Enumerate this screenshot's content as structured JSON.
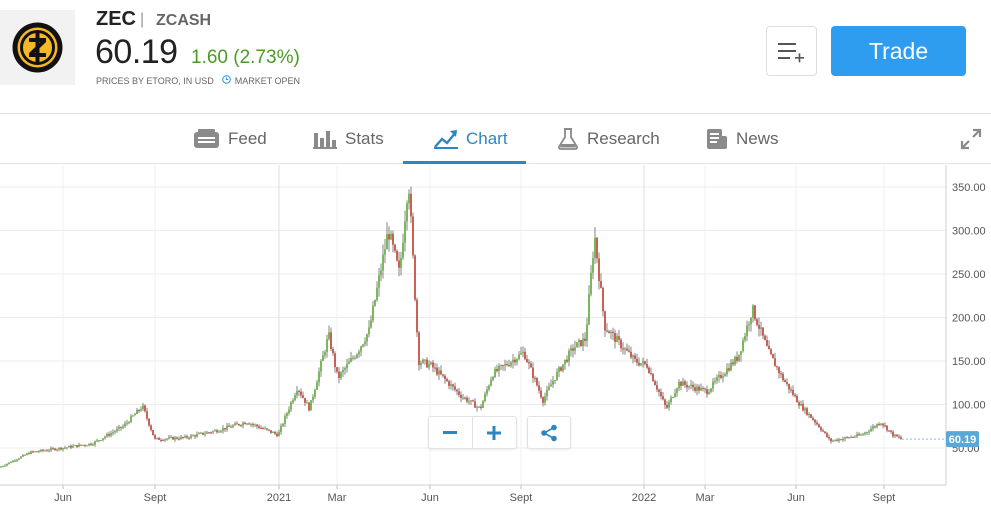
{
  "instrument": {
    "ticker": "ZEC",
    "separator": "|",
    "full_name": "ZCASH",
    "price": "60.19",
    "change": "1.60 (2.73%)",
    "prices_by": "PRICES BY ETORO, IN USD",
    "market_status": "MARKET OPEN"
  },
  "actions": {
    "trade_label": "Trade"
  },
  "tabs": [
    {
      "label": "Feed",
      "icon": "feed-icon"
    },
    {
      "label": "Stats",
      "icon": "stats-icon"
    },
    {
      "label": "Chart",
      "icon": "chart-icon",
      "active": true
    },
    {
      "label": "Research",
      "icon": "research-icon"
    },
    {
      "label": "News",
      "icon": "news-icon"
    }
  ],
  "colors": {
    "accent": "#2e86c1",
    "trade_button": "#2e9df0",
    "positive": "#4a9a26",
    "candle_up": "#5aa832",
    "candle_down": "#c0392b"
  },
  "chart_data": {
    "type": "line",
    "title": "",
    "xlabel": "",
    "ylabel": "",
    "ylim": [
      0,
      370
    ],
    "y_ticks": [
      "50.00",
      "100.00",
      "150.00",
      "200.00",
      "250.00",
      "300.00",
      "350.00"
    ],
    "x_ticks": [
      "Jun",
      "Sept",
      "2021",
      "Mar",
      "Jun",
      "Sept",
      "2022",
      "Mar",
      "Jun",
      "Sept"
    ],
    "last_price_label": "60.19",
    "series": [
      {
        "x": [
          "2020-04",
          "2020-05",
          "2020-06",
          "2020-07",
          "2020-08",
          "2020-08-20",
          "2020-09",
          "2020-10",
          "2020-11",
          "2020-12",
          "2021-01",
          "2021-01-20",
          "2021-02",
          "2021-02-20",
          "2021-03",
          "2021-03-20",
          "2021-04",
          "2021-04-20",
          "2021-05",
          "2021-05-10",
          "2021-05-20",
          "2021-06",
          "2021-07",
          "2021-07-20",
          "2021-08",
          "2021-09",
          "2021-09-20",
          "2021-10",
          "2021-10-20",
          "2021-11",
          "2021-11-10",
          "2021-11-20",
          "2021-12",
          "2021-12-20",
          "2022-01",
          "2022-01-20",
          "2022-02",
          "2022-03",
          "2022-04",
          "2022-04-15",
          "2022-05",
          "2022-05-15",
          "2022-06",
          "2022-06-20",
          "2022-07",
          "2022-08",
          "2022-08-20",
          "2022-09",
          "2022-09-10"
        ],
        "values": [
          28,
          45,
          50,
          55,
          75,
          98,
          60,
          62,
          70,
          80,
          65,
          120,
          95,
          180,
          130,
          160,
          185,
          300,
          250,
          360,
          150,
          145,
          110,
          95,
          135,
          160,
          105,
          130,
          165,
          175,
          295,
          190,
          175,
          150,
          145,
          95,
          125,
          115,
          155,
          210,
          160,
          130,
          100,
          75,
          58,
          65,
          80,
          65,
          60
        ]
      }
    ]
  }
}
